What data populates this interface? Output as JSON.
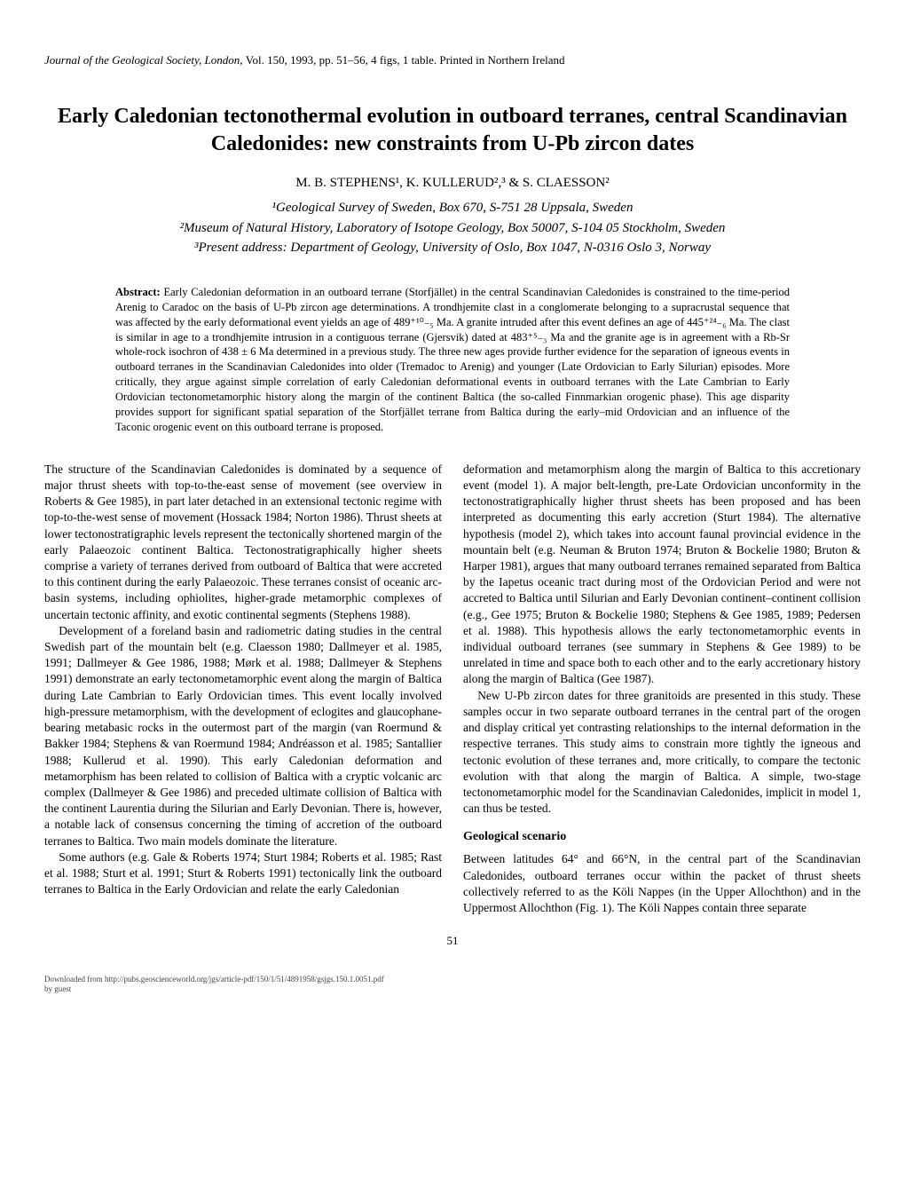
{
  "journal_header": {
    "journal": "Journal of the Geological Society, London,",
    "vol": "Vol. 150, 1993, pp. 51–56, 4 figs, 1 table. Printed in Northern Ireland"
  },
  "title": "Early Caledonian tectonothermal evolution in outboard terranes, central Scandinavian Caledonides: new constraints from U-Pb zircon dates",
  "authors": "M. B. STEPHENS¹, K. KULLERUD²,³ & S. CLAESSON²",
  "affiliations": {
    "a1": "¹Geological Survey of Sweden, Box 670, S-751 28 Uppsala, Sweden",
    "a2": "²Museum of Natural History, Laboratory of Isotope Geology, Box 50007, S-104 05 Stockholm, Sweden",
    "a3": "³Present address: Department of Geology, University of Oslo, Box 1047, N-0316 Oslo 3, Norway"
  },
  "abstract_label": "Abstract:",
  "abstract_text": "Early Caledonian deformation in an outboard terrane (Storfjället) in the central Scandinavian Caledonides is constrained to the time-period Arenig to Caradoc on the basis of U-Pb zircon age determinations. A trondhjemite clast in a conglomerate belonging to a supracrustal sequence that was affected by the early deformational event yields an age of 489⁺¹⁰₋₅ Ma. A granite intruded after this event defines an age of 445⁺²⁴₋₆ Ma. The clast is similar in age to a trondhjemite intrusion in a contiguous terrane (Gjersvik) dated at 483⁺⁵₋₃ Ma and the granite age is in agreement with a Rb-Sr whole-rock isochron of 438 ± 6 Ma determined in a previous study. The three new ages provide further evidence for the separation of igneous events in outboard terranes in the Scandinavian Caledonides into older (Tremadoc to Arenig) and younger (Late Ordovician to Early Silurian) episodes. More critically, they argue against simple correlation of early Caledonian deformational events in outboard terranes with the Late Cambrian to Early Ordovician tectonometamorphic history along the margin of the continent Baltica (the so-called Finnmarkian orogenic phase). This age disparity provides support for significant spatial separation of the Storfjället terrane from Baltica during the early–mid Ordovician and an influence of the Taconic orogenic event on this outboard terrane is proposed.",
  "body": {
    "p1": "The structure of the Scandinavian Caledonides is dominated by a sequence of major thrust sheets with top-to-the-east sense of movement (see overview in Roberts & Gee 1985), in part later detached in an extensional tectonic regime with top-to-the-west sense of movement (Hossack 1984; Norton 1986). Thrust sheets at lower tectonostratigraphic levels represent the tectonically shortened margin of the early Palaeozoic continent Baltica. Tectonostratigraphically higher sheets comprise a variety of terranes derived from outboard of Baltica that were accreted to this continent during the early Palaeozoic. These terranes consist of oceanic arc-basin systems, including ophiolites, higher-grade metamorphic complexes of uncertain tectonic affinity, and exotic continental segments (Stephens 1988).",
    "p2": "Development of a foreland basin and radiometric dating studies in the central Swedish part of the mountain belt (e.g. Claesson 1980; Dallmeyer et al. 1985, 1991; Dallmeyer & Gee 1986, 1988; Mørk et al. 1988; Dallmeyer & Stephens 1991) demonstrate an early tectonometamorphic event along the margin of Baltica during Late Cambrian to Early Ordovician times. This event locally involved high-pressure metamorphism, with the development of eclogites and glaucophane-bearing metabasic rocks in the outermost part of the margin (van Roermund & Bakker 1984; Stephens & van Roermund 1984; Andréasson et al. 1985; Santallier 1988; Kullerud et al. 1990). This early Caledonian deformation and metamorphism has been related to collision of Baltica with a cryptic volcanic arc complex (Dallmeyer & Gee 1986) and preceded ultimate collision of Baltica with the continent Laurentia during the Silurian and Early Devonian. There is, however, a notable lack of consensus concerning the timing of accretion of the outboard terranes to Baltica. Two main models dominate the literature.",
    "p3": "Some authors (e.g. Gale & Roberts 1974; Sturt 1984; Roberts et al. 1985; Rast et al. 1988; Sturt et al. 1991; Sturt & Roberts 1991) tectonically link the outboard terranes to Baltica in the Early Ordovician and relate the early Caledonian",
    "p4": "deformation and metamorphism along the margin of Baltica to this accretionary event (model 1). A major belt-length, pre-Late Ordovician unconformity in the tectonostratigraphically higher thrust sheets has been proposed and has been interpreted as documenting this early accretion (Sturt 1984). The alternative hypothesis (model 2), which takes into account faunal provincial evidence in the mountain belt (e.g. Neuman & Bruton 1974; Bruton & Bockelie 1980; Bruton & Harper 1981), argues that many outboard terranes remained separated from Baltica by the Iapetus oceanic tract during most of the Ordovician Period and were not accreted to Baltica until Silurian and Early Devonian continent–continent collision (e.g., Gee 1975; Bruton & Bockelie 1980; Stephens & Gee 1985, 1989; Pedersen et al. 1988). This hypothesis allows the early tectonometamorphic events in individual outboard terranes (see summary in Stephens & Gee 1989) to be unrelated in time and space both to each other and to the early accretionary history along the margin of Baltica (Gee 1987).",
    "p5": "New U-Pb zircon dates for three granitoids are presented in this study. These samples occur in two separate outboard terranes in the central part of the orogen and display critical yet contrasting relationships to the internal deformation in the respective terranes. This study aims to constrain more tightly the igneous and tectonic evolution of these terranes and, more critically, to compare the tectonic evolution with that along the margin of Baltica. A simple, two-stage tectonometamorphic model for the Scandinavian Caledonides, implicit in model 1, can thus be tested.",
    "heading1": "Geological scenario",
    "p6": "Between latitudes 64° and 66°N, in the central part of the Scandinavian Caledonides, outboard terranes occur within the packet of thrust sheets collectively referred to as the Köli Nappes (in the Upper Allochthon) and in the Uppermost Allochthon (Fig. 1). The Köli Nappes contain three separate"
  },
  "page_number": "51",
  "footer": {
    "line1": "Downloaded from http://pubs.geoscienceworld.org/jgs/article-pdf/150/1/51/4891958/gsjgs.150.1.0051.pdf",
    "line2": "by guest"
  }
}
